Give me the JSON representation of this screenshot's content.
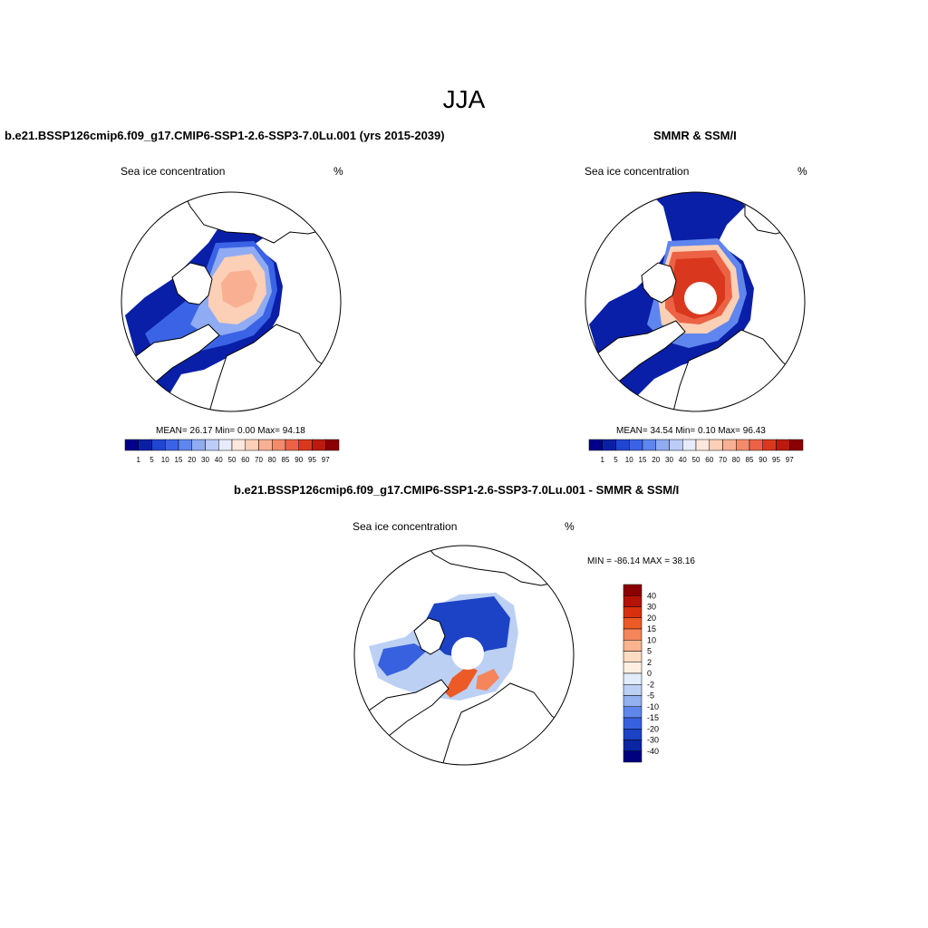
{
  "page": {
    "title": "JJA"
  },
  "panels": [
    {
      "title": "b.e21.BSSP126cmip6.f09_g17.CMIP6-SSP1-2.6-SSP3-7.0Lu.001 (yrs 2015-2039)",
      "left_label": "Sea ice concentration",
      "right_label": "%",
      "stats": "MEAN=  26.17  Min=   0.00  Max=  94.18"
    },
    {
      "title": "SMMR & SSM/I",
      "left_label": "Sea ice concentration",
      "right_label": "%",
      "stats": "MEAN=  34.54  Min=   0.10  Max=  96.43"
    },
    {
      "title": "b.e21.BSSP126cmip6.f09_g17.CMIP6-SSP1-2.6-SSP3-7.0Lu.001 - SMMR & SSM/I",
      "left_label": "Sea ice concentration",
      "right_label": "%",
      "stats": "MIN = -86.14 MAX =  38.16"
    }
  ],
  "colors": {
    "conc_scale": [
      "#00008b",
      "#0a1fa8",
      "#1f46d0",
      "#3a63e6",
      "#5f86ee",
      "#8fabf3",
      "#bcccf7",
      "#e6ecfb",
      "#fde9dc",
      "#fcd0b6",
      "#f9b092",
      "#f48a6c",
      "#ec6245",
      "#d9381e",
      "#bb1b0e",
      "#8b0000"
    ],
    "diff_scale": [
      "#8b0000",
      "#b51208",
      "#d7300f",
      "#ec5a26",
      "#f5855b",
      "#f9b48f",
      "#fcdbc3",
      "#ffefe3",
      "#e2ebfa",
      "#bcd0f4",
      "#93b1ee",
      "#5f86ea",
      "#3761df",
      "#1c43c5",
      "#0a26a2",
      "#00007f"
    ],
    "land_outline": "#000000"
  },
  "chart_data": [
    {
      "type": "heatmap",
      "title": "b.e21.BSSP126cmip6.f09_g17.CMIP6-SSP1-2.6-SSP3-7.0Lu.001 (yrs 2015-2039)",
      "projection": "polar-stereographic-north",
      "variable": "Sea ice concentration",
      "units": "%",
      "mean": 26.17,
      "min": 0.0,
      "max": 94.18,
      "colorbar_ticks": [
        "1",
        "5",
        "10",
        "15",
        "20",
        "30",
        "40",
        "50",
        "60",
        "70",
        "80",
        "85",
        "90",
        "95",
        "97"
      ],
      "has_pole_hole": false
    },
    {
      "type": "heatmap",
      "title": "SMMR & SSM/I",
      "projection": "polar-stereographic-north",
      "variable": "Sea ice concentration",
      "units": "%",
      "mean": 34.54,
      "min": 0.1,
      "max": 96.43,
      "colorbar_ticks": [
        "1",
        "5",
        "10",
        "15",
        "20",
        "30",
        "40",
        "50",
        "60",
        "70",
        "80",
        "85",
        "90",
        "95",
        "97"
      ],
      "has_pole_hole": true
    },
    {
      "type": "heatmap",
      "title": "b.e21.BSSP126cmip6.f09_g17.CMIP6-SSP1-2.6-SSP3-7.0Lu.001 - SMMR & SSM/I",
      "projection": "polar-stereographic-north",
      "variable": "Sea ice concentration",
      "units": "%",
      "min": -86.14,
      "max": 38.16,
      "colorbar_ticks": [
        "40",
        "30",
        "20",
        "15",
        "10",
        "5",
        "2",
        "0",
        "-2",
        "-5",
        "-10",
        "-15",
        "-20",
        "-30",
        "-40"
      ],
      "colorbar_orientation": "vertical",
      "has_pole_hole": true
    }
  ]
}
